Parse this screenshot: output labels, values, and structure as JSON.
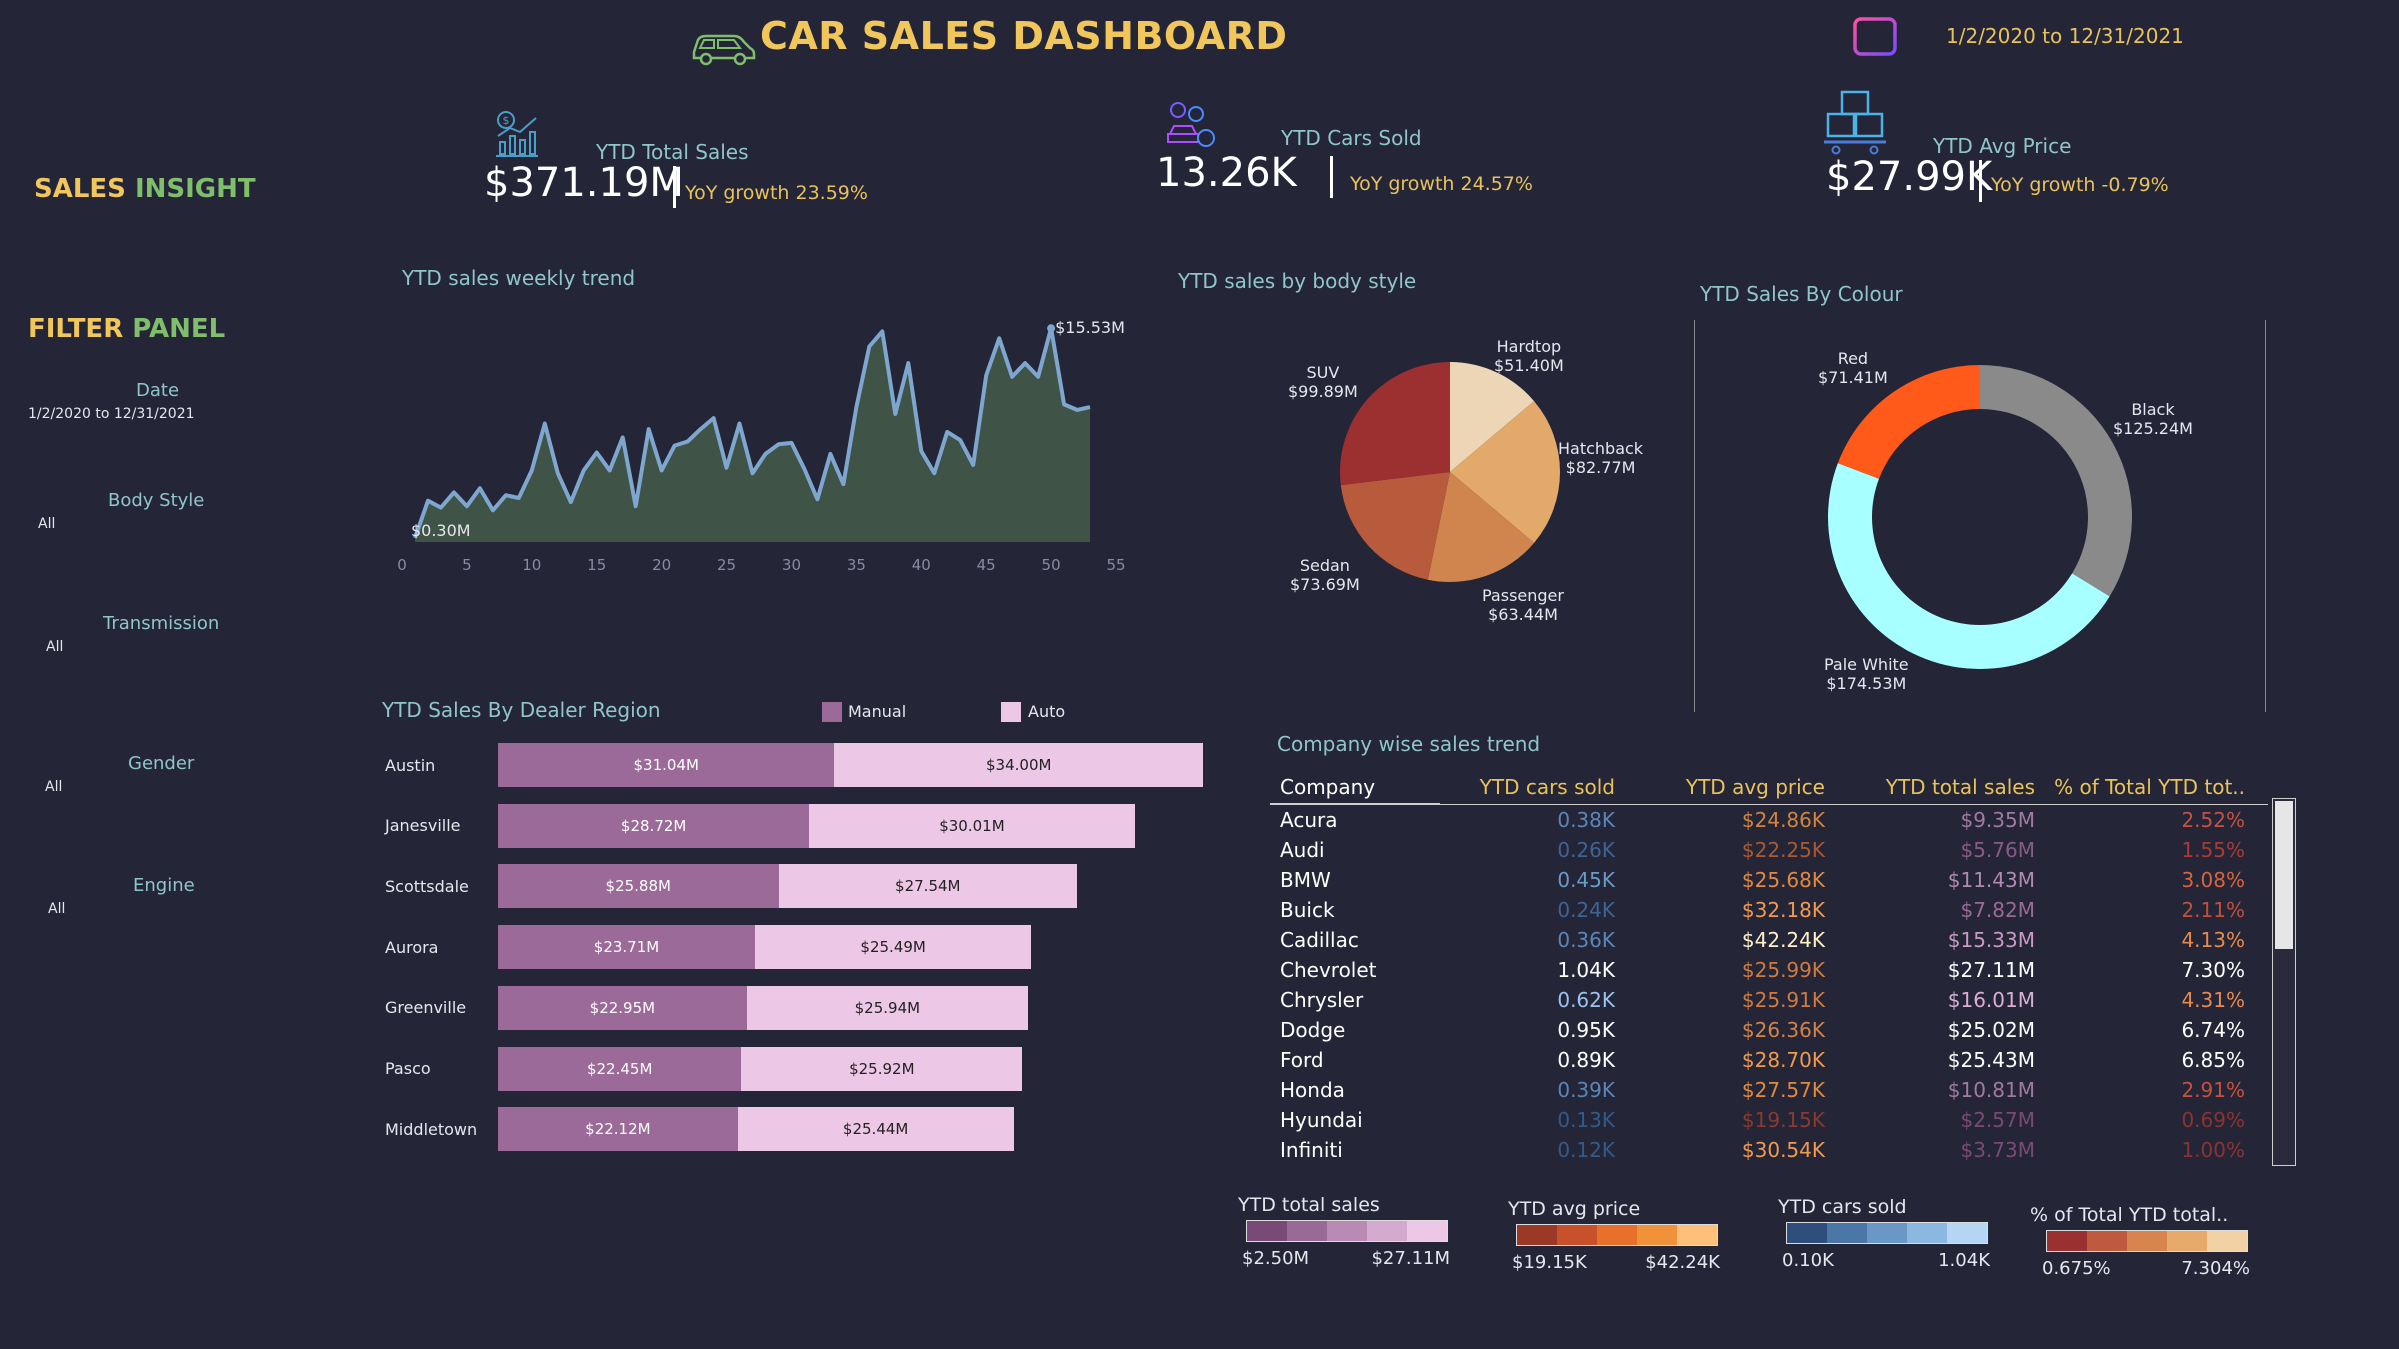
{
  "header": {
    "title": "CAR SALES DASHBOARD",
    "date_range": "1/2/2020 to 12/31/2021"
  },
  "sidebar": {
    "sales_insight_1": "SALES",
    "sales_insight_2": "INSIGHT",
    "filter_panel_1": "FILTER",
    "filter_panel_2": "PANEL",
    "filters": [
      {
        "label": "Date",
        "value": "1/2/2020 to 12/31/2021"
      },
      {
        "label": "Body Style",
        "value": "All"
      },
      {
        "label": "Transmission",
        "value": "All"
      },
      {
        "label": "Gender",
        "value": "All"
      },
      {
        "label": "Engine",
        "value": "All"
      }
    ]
  },
  "kpis": [
    {
      "label": "YTD Total Sales",
      "value": "$371.19M",
      "growth": "YoY growth 23.59%"
    },
    {
      "label": "YTD Cars Sold",
      "value": "13.26K",
      "growth": "YoY growth 24.57%"
    },
    {
      "label": "YTD Avg Price",
      "value": "$27.99K",
      "growth": "YoY growth -0.79%"
    }
  ],
  "colors": {
    "line": "#7ea6cf",
    "area": "#3f5446",
    "manual": "#9b6a98",
    "auto": "#ecc7e6"
  },
  "chart_data": [
    {
      "type": "area",
      "title": "YTD sales weekly trend",
      "x": [
        1,
        2,
        3,
        4,
        5,
        6,
        7,
        8,
        9,
        10,
        11,
        12,
        13,
        14,
        15,
        16,
        17,
        18,
        19,
        20,
        21,
        22,
        23,
        24,
        25,
        26,
        27,
        28,
        29,
        30,
        31,
        32,
        33,
        34,
        35,
        36,
        37,
        38,
        39,
        40,
        41,
        42,
        43,
        44,
        45,
        46,
        47,
        48,
        49,
        50,
        51,
        52,
        53
      ],
      "values": [
        0.3,
        3.0,
        2.5,
        3.6,
        2.6,
        3.9,
        2.3,
        3.4,
        3.2,
        5.2,
        8.6,
        5.0,
        2.9,
        5.2,
        6.5,
        5.2,
        7.6,
        2.6,
        8.2,
        5.2,
        7.0,
        7.3,
        8.2,
        9.0,
        5.4,
        8.6,
        5.0,
        6.4,
        7.1,
        7.2,
        5.3,
        3.1,
        6.4,
        4.2,
        9.8,
        14.2,
        15.3,
        9.3,
        13.0,
        6.6,
        5.0,
        8.0,
        7.4,
        5.6,
        12.1,
        14.8,
        12.0,
        13.0,
        12.0,
        15.53,
        10.0,
        9.6,
        9.8
      ],
      "xticks": [
        0,
        5,
        10,
        15,
        20,
        25,
        30,
        35,
        40,
        45,
        50,
        55
      ],
      "xlim": [
        0,
        55
      ],
      "ylim": [
        0,
        17
      ],
      "labels": {
        "min": "$0.30M",
        "max": "$15.53M"
      }
    },
    {
      "type": "pie",
      "title": "YTD sales by body style",
      "slices": [
        {
          "name": "Hardtop",
          "value": 51.4,
          "label": "$51.40M",
          "color": "#ecd6b6"
        },
        {
          "name": "Hatchback",
          "value": 82.77,
          "label": "$82.77M",
          "color": "#e3a96a"
        },
        {
          "name": "Passenger",
          "value": 63.44,
          "label": "$63.44M",
          "color": "#d0844e"
        },
        {
          "name": "Sedan",
          "value": 73.69,
          "label": "$73.69M",
          "color": "#b85a3c"
        },
        {
          "name": "SUV",
          "value": 99.89,
          "label": "$99.89M",
          "color": "#9c3030"
        }
      ]
    },
    {
      "type": "pie",
      "title": "YTD Sales By Colour",
      "donut": true,
      "slices": [
        {
          "name": "Black",
          "value": 125.24,
          "label": "$125.24M",
          "color": "#8a8a8a"
        },
        {
          "name": "Pale White",
          "value": 174.53,
          "label": "$174.53M",
          "color": "#a8ffff"
        },
        {
          "name": "Red",
          "value": 71.41,
          "label": "$71.41M",
          "color": "#ff5a1a"
        }
      ]
    },
    {
      "type": "bar",
      "title": "YTD Sales By Dealer Region",
      "stacked": true,
      "orientation": "horizontal",
      "categories": [
        "Austin",
        "Janesville",
        "Scottsdale",
        "Aurora",
        "Greenville",
        "Pasco",
        "Middletown"
      ],
      "series": [
        {
          "name": "Manual",
          "values": [
            31.04,
            28.72,
            25.88,
            23.71,
            22.95,
            22.45,
            22.12
          ],
          "labels": [
            "$31.04M",
            "$28.72M",
            "$25.88M",
            "$23.71M",
            "$22.95M",
            "$22.45M",
            "$22.12M"
          ]
        },
        {
          "name": "Auto",
          "values": [
            34.0,
            30.01,
            27.54,
            25.49,
            25.94,
            25.92,
            25.44
          ],
          "labels": [
            "$34.00M",
            "$30.01M",
            "$27.54M",
            "$25.49M",
            "$25.94M",
            "$25.92M",
            "$25.44M"
          ]
        }
      ]
    },
    {
      "type": "table",
      "title": "Company wise sales trend",
      "columns": [
        "Company",
        "YTD cars sold",
        "YTD avg price",
        "YTD total sales",
        "% of Total YTD tot.."
      ],
      "rows": [
        [
          "Acura",
          "0.38K",
          "$24.86K",
          "$9.35M",
          "2.52%"
        ],
        [
          "Audi",
          "0.26K",
          "$22.25K",
          "$5.76M",
          "1.55%"
        ],
        [
          "BMW",
          "0.45K",
          "$25.68K",
          "$11.43M",
          "3.08%"
        ],
        [
          "Buick",
          "0.24K",
          "$32.18K",
          "$7.82M",
          "2.11%"
        ],
        [
          "Cadillac",
          "0.36K",
          "$42.24K",
          "$15.33M",
          "4.13%"
        ],
        [
          "Chevrolet",
          "1.04K",
          "$25.99K",
          "$27.11M",
          "7.30%"
        ],
        [
          "Chrysler",
          "0.62K",
          "$25.91K",
          "$16.01M",
          "4.31%"
        ],
        [
          "Dodge",
          "0.95K",
          "$26.36K",
          "$25.02M",
          "6.74%"
        ],
        [
          "Ford",
          "0.89K",
          "$28.70K",
          "$25.43M",
          "6.85%"
        ],
        [
          "Honda",
          "0.39K",
          "$27.57K",
          "$10.81M",
          "2.91%"
        ],
        [
          "Hyundai",
          "0.13K",
          "$19.15K",
          "$2.57M",
          "0.69%"
        ],
        [
          "Infiniti",
          "0.12K",
          "$30.54K",
          "$3.73M",
          "1.00%"
        ]
      ],
      "cell_colors": [
        [
          "#5a86b8",
          "#d0843e",
          "#a07aa2",
          "#c8503e"
        ],
        [
          "#3e6494",
          "#a85a34",
          "#8a5a86",
          "#a83c34"
        ],
        [
          "#6a9ac8",
          "#e08a40",
          "#b08ab2",
          "#d8643e"
        ],
        [
          "#3e6494",
          "#f09a50",
          "#9a6a96",
          "#c0503c"
        ],
        [
          "#5a86b8",
          "#fff0c8",
          "#c89ac4",
          "#e88a4c"
        ],
        [
          "#ffffff",
          "#d07a40",
          "#ffffff",
          "#ffffff"
        ],
        [
          "#9ac4ee",
          "#d07a40",
          "#d8b0d4",
          "#e88a4c"
        ],
        [
          "#ffffff",
          "#d08448",
          "#ffffff",
          "#ffffff"
        ],
        [
          "#ffffff",
          "#f09a50",
          "#ffffff",
          "#ffffff"
        ],
        [
          "#5a86b8",
          "#e08a40",
          "#a07aa2",
          "#c8503e"
        ],
        [
          "#345a88",
          "#8a3a2e",
          "#7a4a76",
          "#8a3430"
        ],
        [
          "#345a88",
          "#f09a50",
          "#7a4a76",
          "#8a3430"
        ]
      ]
    }
  ],
  "legends": [
    {
      "title": "YTD total sales",
      "min": "$2.50M",
      "max": "$27.11M",
      "colors": [
        "#7a4a76",
        "#9a6a96",
        "#b88ab4",
        "#d4aad0",
        "#ecc7e6"
      ]
    },
    {
      "title": "YTD avg price",
      "min": "$19.15K",
      "max": "$42.24K",
      "colors": [
        "#9a3a26",
        "#c8502a",
        "#e8702a",
        "#f0923a",
        "#fcc07a"
      ]
    },
    {
      "title": "YTD cars sold",
      "min": "0.10K",
      "max": "1.04K",
      "colors": [
        "#2e4e7e",
        "#4a76a8",
        "#6a98c6",
        "#8ab8e0",
        "#b4d6f2"
      ]
    },
    {
      "title": "% of Total YTD total..",
      "min": "0.675%",
      "max": "7.304%",
      "colors": [
        "#9a3030",
        "#c05a3e",
        "#d8844e",
        "#e8aa6a",
        "#f2d2a4"
      ]
    }
  ]
}
